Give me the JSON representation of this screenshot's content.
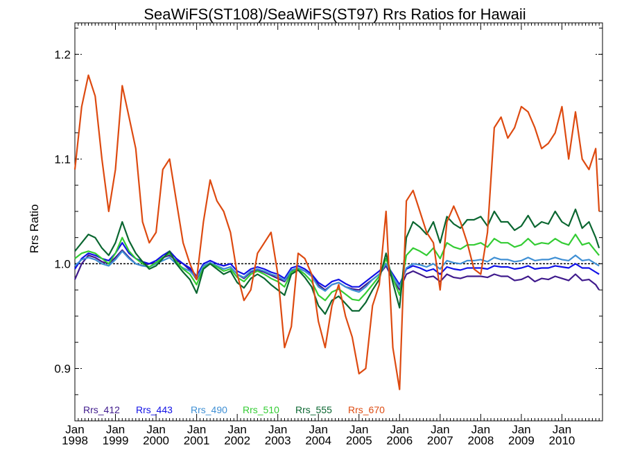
{
  "chart_data": {
    "type": "line",
    "title": "SeaWiFS(ST108)/SeaWiFS(ST97)  Rrs Ratios for Hawaii",
    "xlabel": "",
    "ylabel": "Rrs Ratio",
    "xlim": [
      "1998-01",
      "2011-01"
    ],
    "ylim": [
      0.85,
      1.23
    ],
    "yticks": [
      0.9,
      1.0,
      1.1,
      1.2
    ],
    "ytick_labels": [
      "0.9",
      "1.0",
      "1.1",
      "1.2"
    ],
    "xticks": [
      {
        "top": "Jan",
        "bottom": "1998"
      },
      {
        "top": "Jan",
        "bottom": "1999"
      },
      {
        "top": "Jan",
        "bottom": "2000"
      },
      {
        "top": "Jan",
        "bottom": "2001"
      },
      {
        "top": "Jan",
        "bottom": "2002"
      },
      {
        "top": "Jan",
        "bottom": "2003"
      },
      {
        "top": "Jan",
        "bottom": "2004"
      },
      {
        "top": "Jan",
        "bottom": "2005"
      },
      {
        "top": "Jan",
        "bottom": "2006"
      },
      {
        "top": "Jan",
        "bottom": "2007"
      },
      {
        "top": "Jan",
        "bottom": "2008"
      },
      {
        "top": "Jan",
        "bottom": "2009"
      },
      {
        "top": "Jan",
        "bottom": "2010"
      }
    ],
    "reference_line": 1.0,
    "legend_position": "bottom-left",
    "x": [
      "1998-01",
      "1998-03",
      "1998-05",
      "1998-07",
      "1998-09",
      "1998-11",
      "1999-01",
      "1999-03",
      "1999-05",
      "1999-07",
      "1999-09",
      "1999-11",
      "2000-01",
      "2000-03",
      "2000-05",
      "2000-07",
      "2000-09",
      "2000-11",
      "2001-01",
      "2001-03",
      "2001-05",
      "2001-07",
      "2001-09",
      "2001-11",
      "2002-01",
      "2002-03",
      "2002-05",
      "2002-07",
      "2002-09",
      "2002-11",
      "2003-01",
      "2003-03",
      "2003-05",
      "2003-07",
      "2003-09",
      "2003-11",
      "2004-01",
      "2004-03",
      "2004-05",
      "2004-07",
      "2004-09",
      "2004-11",
      "2005-01",
      "2005-03",
      "2005-05",
      "2005-07",
      "2005-09",
      "2005-11",
      "2006-01",
      "2006-03",
      "2006-05",
      "2006-07",
      "2006-09",
      "2006-11",
      "2007-01",
      "2007-03",
      "2007-05",
      "2007-07",
      "2007-09",
      "2007-11",
      "2008-01",
      "2008-03",
      "2008-05",
      "2008-07",
      "2008-09",
      "2008-11",
      "2009-01",
      "2009-03",
      "2009-05",
      "2009-07",
      "2009-09",
      "2009-11",
      "2010-01",
      "2010-03",
      "2010-05",
      "2010-07",
      "2010-09",
      "2010-11",
      "2010-12"
    ],
    "series": [
      {
        "name": "Rrs_412",
        "color": "#3f1a8c",
        "values": [
          0.985,
          1.0,
          1.008,
          1.006,
          1.002,
          1.0,
          1.006,
          1.013,
          1.006,
          1.0,
          0.998,
          1.0,
          1.001,
          1.006,
          1.008,
          1.003,
          1.0,
          0.994,
          0.985,
          0.998,
          1.0,
          0.998,
          0.995,
          0.997,
          0.99,
          0.986,
          0.992,
          0.994,
          0.992,
          0.989,
          0.986,
          0.983,
          0.993,
          0.996,
          0.993,
          0.988,
          0.98,
          0.975,
          0.98,
          0.982,
          0.978,
          0.976,
          0.975,
          0.98,
          0.985,
          0.99,
          0.998,
          0.985,
          0.975,
          0.99,
          0.993,
          0.99,
          0.987,
          0.988,
          0.983,
          0.99,
          0.987,
          0.986,
          0.988,
          0.988,
          0.988,
          0.987,
          0.99,
          0.988,
          0.988,
          0.984,
          0.985,
          0.988,
          0.983,
          0.986,
          0.985,
          0.988,
          0.986,
          0.984,
          0.99,
          0.984,
          0.985,
          0.98,
          0.975
        ]
      },
      {
        "name": "Rrs_443",
        "color": "#1010e6",
        "values": [
          0.995,
          1.005,
          1.01,
          1.008,
          1.005,
          1.003,
          1.01,
          1.02,
          1.01,
          1.005,
          1.002,
          1.0,
          1.003,
          1.008,
          1.012,
          1.005,
          1.0,
          0.996,
          0.988,
          1.0,
          1.003,
          1.0,
          0.998,
          1.0,
          0.993,
          0.99,
          0.995,
          0.997,
          0.995,
          0.992,
          0.99,
          0.986,
          0.996,
          0.998,
          0.995,
          0.99,
          0.982,
          0.978,
          0.983,
          0.985,
          0.981,
          0.978,
          0.978,
          0.983,
          0.988,
          0.993,
          1.0,
          0.99,
          0.98,
          0.995,
          0.998,
          0.996,
          0.993,
          0.995,
          0.99,
          0.997,
          0.995,
          0.994,
          0.996,
          0.996,
          0.996,
          0.995,
          0.998,
          0.997,
          0.997,
          0.995,
          0.996,
          0.998,
          0.995,
          0.996,
          0.996,
          0.998,
          0.997,
          0.996,
          1.0,
          0.996,
          0.996,
          0.992,
          0.99
        ]
      },
      {
        "name": "Rrs_490",
        "color": "#3e8fd4",
        "values": [
          0.998,
          1.004,
          1.006,
          1.004,
          1.0,
          0.998,
          1.004,
          1.012,
          1.005,
          1.0,
          0.998,
          0.997,
          1.0,
          1.003,
          1.006,
          1.0,
          0.996,
          0.993,
          0.986,
          0.998,
          1.001,
          0.998,
          0.995,
          0.997,
          0.99,
          0.987,
          0.993,
          0.995,
          0.993,
          0.99,
          0.988,
          0.984,
          0.994,
          0.996,
          0.993,
          0.988,
          0.978,
          0.974,
          0.98,
          0.982,
          0.978,
          0.975,
          0.973,
          0.978,
          0.985,
          0.99,
          1.0,
          0.988,
          0.978,
          0.996,
          1.0,
          0.999,
          0.997,
          1.0,
          0.995,
          1.003,
          1.001,
          1.0,
          1.003,
          1.003,
          1.004,
          1.002,
          1.006,
          1.004,
          1.004,
          1.002,
          1.003,
          1.006,
          1.003,
          1.004,
          1.004,
          1.006,
          1.004,
          1.003,
          1.008,
          1.003,
          1.004,
          1.0,
          0.998
        ]
      },
      {
        "name": "Rrs_510",
        "color": "#33cc33",
        "values": [
          1.005,
          1.01,
          1.012,
          1.01,
          1.005,
          1.0,
          1.01,
          1.025,
          1.012,
          1.005,
          1.0,
          0.997,
          1.001,
          1.006,
          1.01,
          1.002,
          0.995,
          0.99,
          0.98,
          0.996,
          1.0,
          0.997,
          0.993,
          0.995,
          0.987,
          0.983,
          0.99,
          0.993,
          0.99,
          0.986,
          0.983,
          0.978,
          0.992,
          0.995,
          0.99,
          0.983,
          0.97,
          0.965,
          0.973,
          0.976,
          0.971,
          0.966,
          0.965,
          0.972,
          0.98,
          0.988,
          1.005,
          0.986,
          0.97,
          1.008,
          1.015,
          1.012,
          1.008,
          1.015,
          1.005,
          1.02,
          1.016,
          1.014,
          1.018,
          1.018,
          1.02,
          1.016,
          1.024,
          1.02,
          1.02,
          1.016,
          1.018,
          1.024,
          1.018,
          1.02,
          1.019,
          1.024,
          1.02,
          1.018,
          1.028,
          1.018,
          1.02,
          1.012,
          1.008
        ]
      },
      {
        "name": "Rrs_555",
        "color": "#0a6630",
        "values": [
          1.012,
          1.02,
          1.028,
          1.025,
          1.015,
          1.008,
          1.02,
          1.04,
          1.022,
          1.01,
          1.002,
          0.995,
          0.998,
          1.005,
          1.012,
          1.0,
          0.992,
          0.985,
          0.972,
          0.995,
          1.0,
          0.995,
          0.99,
          0.993,
          0.982,
          0.977,
          0.986,
          0.99,
          0.986,
          0.98,
          0.975,
          0.97,
          0.99,
          0.994,
          0.987,
          0.978,
          0.96,
          0.952,
          0.965,
          0.969,
          0.962,
          0.955,
          0.955,
          0.963,
          0.975,
          0.985,
          1.01,
          0.982,
          0.958,
          1.025,
          1.04,
          1.035,
          1.028,
          1.04,
          1.02,
          1.045,
          1.038,
          1.034,
          1.042,
          1.042,
          1.045,
          1.036,
          1.05,
          1.04,
          1.04,
          1.032,
          1.036,
          1.046,
          1.035,
          1.04,
          1.038,
          1.05,
          1.04,
          1.036,
          1.052,
          1.034,
          1.04,
          1.025,
          1.015
        ]
      },
      {
        "name": "Rrs_670",
        "color": "#dd4a10",
        "values": [
          1.09,
          1.15,
          1.18,
          1.16,
          1.1,
          1.05,
          1.09,
          1.17,
          1.14,
          1.11,
          1.04,
          1.02,
          1.03,
          1.09,
          1.1,
          1.06,
          1.02,
          1.0,
          0.985,
          1.04,
          1.08,
          1.06,
          1.05,
          1.03,
          0.99,
          0.965,
          0.975,
          1.01,
          1.02,
          1.03,
          0.99,
          0.92,
          0.94,
          1.01,
          1.005,
          0.99,
          0.945,
          0.92,
          0.96,
          0.98,
          0.95,
          0.93,
          0.895,
          0.9,
          0.96,
          0.98,
          1.05,
          0.92,
          0.88,
          1.06,
          1.07,
          1.05,
          1.03,
          1.02,
          0.975,
          1.04,
          1.055,
          1.04,
          1.02,
          0.995,
          0.99,
          1.03,
          1.13,
          1.14,
          1.12,
          1.13,
          1.15,
          1.145,
          1.13,
          1.11,
          1.115,
          1.125,
          1.15,
          1.1,
          1.145,
          1.1,
          1.09,
          1.11,
          1.05
        ]
      }
    ]
  }
}
